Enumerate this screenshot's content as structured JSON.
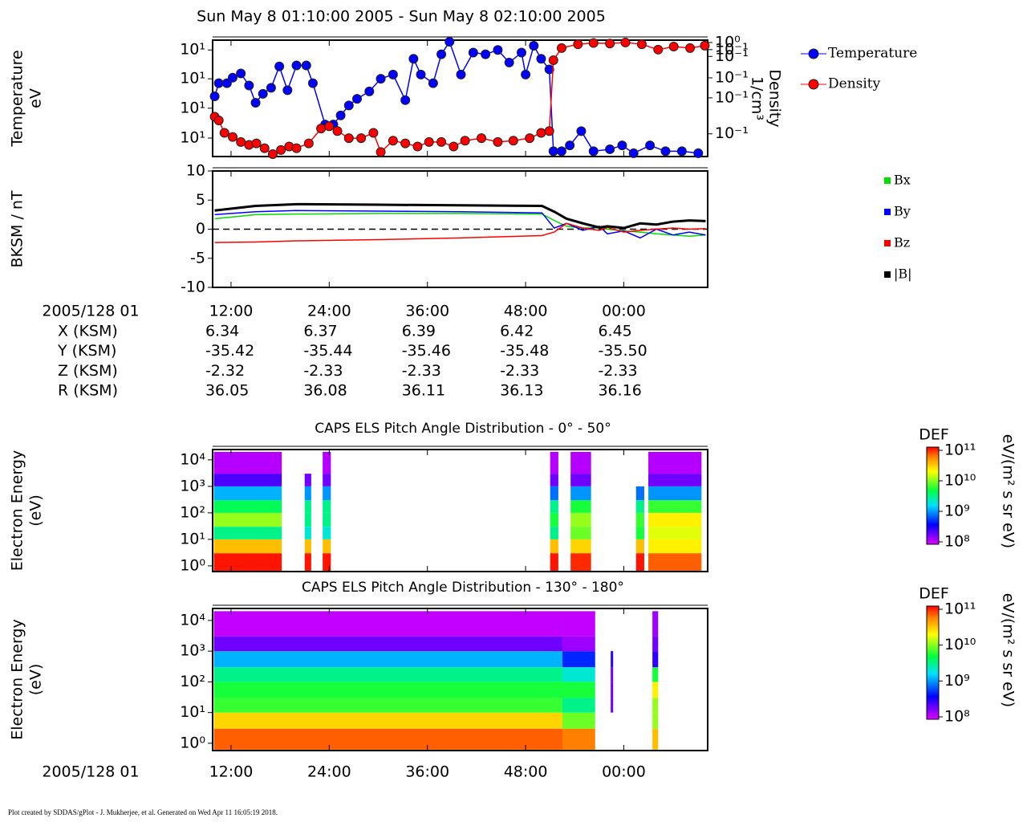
{
  "title": "Sun May 8 01:10:00 2005 - Sun May 8 02:10:00 2005",
  "footer": "Plot created by SDDAS/gPlot - J. Mukherjee, et al.  Generated on Wed Apr 11 16:05:19 2018.",
  "chart_data": [
    {
      "type": "line",
      "log_y": true,
      "log_y2": true,
      "ylabel": [
        "Temperature",
        "eV"
      ],
      "y2label": [
        "Density",
        "1/cm³"
      ],
      "xlim": [
        9.75,
        70.25
      ],
      "ylim": [
        5.74,
        15.2
      ],
      "yticks": [
        {
          "value": 14,
          "label": "10¹"
        },
        {
          "value": 11,
          "label": "10¹"
        },
        {
          "value": 8.6,
          "label": "10¹"
        },
        {
          "value": 6.7,
          "label": "10¹"
        }
      ],
      "y2lim": [
        0.01,
        1.1
      ],
      "y2ticks": [
        {
          "value": 1.0,
          "label": "10⁰"
        },
        {
          "value": 0.75,
          "label": "10⁻¹"
        },
        {
          "value": 0.57,
          "label": "10⁻¹"
        },
        {
          "value": 0.24,
          "label": "10⁻¹"
        },
        {
          "value": 0.107,
          "label": "10⁻¹"
        },
        {
          "value": 0.025,
          "label": "10⁻¹"
        }
      ],
      "series": [
        {
          "name": "Temperature",
          "color": "#0000ff",
          "axis": "y",
          "x": [
            10.0,
            10.5,
            11.5,
            12.2,
            13.2,
            14.2,
            15.0,
            15.9,
            16.9,
            17.9,
            18.9,
            20.0,
            21.2,
            22.0,
            23.5,
            24.5,
            25.4,
            26.4,
            27.4,
            28.9,
            30.3,
            31.8,
            33.3,
            34.3,
            35.2,
            36.7,
            37.7,
            38.7,
            40.1,
            41.6,
            43.1,
            44.6,
            46.0,
            47.5,
            48.0,
            49.0,
            49.9,
            50.9,
            51.4,
            52.4,
            53.4,
            54.8,
            56.3,
            58.3,
            59.8,
            61.2,
            63.2,
            65.1,
            67.1,
            69.1
          ],
          "values": [
            9.5,
            10.6,
            10.6,
            11.1,
            11.5,
            10.4,
            9.0,
            9.7,
            10.2,
            12.2,
            10.0,
            12.3,
            12.3,
            10.6,
            7.5,
            7.5,
            8.1,
            8.8,
            9.3,
            9.9,
            11.0,
            11.4,
            9.2,
            13.0,
            11.4,
            10.6,
            13.5,
            15.0,
            11.4,
            13.7,
            13.5,
            14.0,
            12.6,
            13.7,
            11.4,
            14.5,
            13.0,
            11.9,
            6.0,
            6.0,
            6.3,
            7.1,
            6.0,
            6.1,
            6.3,
            5.9,
            6.3,
            6.0,
            6.0,
            5.9
          ]
        },
        {
          "name": "Density",
          "color": "#ff0000",
          "axis": "y2",
          "x": [
            10.0,
            10.5,
            11.2,
            12.2,
            13.2,
            14.2,
            15.1,
            16.1,
            17.1,
            18.1,
            19.1,
            20.0,
            21.5,
            23.0,
            24.0,
            25.0,
            26.4,
            27.9,
            29.4,
            30.3,
            31.8,
            33.3,
            34.8,
            36.2,
            37.7,
            39.2,
            40.6,
            42.6,
            44.6,
            46.5,
            48.5,
            49.9,
            50.9,
            51.4,
            52.4,
            54.4,
            56.3,
            58.3,
            60.2,
            62.2,
            64.2,
            66.1,
            68.1,
            69.9
          ],
          "values": [
            0.05,
            0.043,
            0.026,
            0.022,
            0.018,
            0.016,
            0.017,
            0.014,
            0.011,
            0.013,
            0.015,
            0.014,
            0.017,
            0.031,
            0.034,
            0.028,
            0.021,
            0.021,
            0.026,
            0.012,
            0.019,
            0.017,
            0.015,
            0.018,
            0.018,
            0.015,
            0.019,
            0.021,
            0.018,
            0.019,
            0.021,
            0.026,
            0.028,
            0.49,
            0.8,
            0.93,
            0.98,
            0.96,
            1.0,
            0.93,
            0.75,
            0.85,
            0.8,
            0.88
          ]
        }
      ]
    },
    {
      "type": "line",
      "ylabel": [
        "BKSM / nT"
      ],
      "xlabel": "2005/128 01",
      "xlim": [
        9.75,
        70.25
      ],
      "xticks": [
        {
          "value": 12,
          "label": "12:00"
        },
        {
          "value": 24,
          "label": "24:00"
        },
        {
          "value": 36,
          "label": "36:00"
        },
        {
          "value": 48,
          "label": "48:00"
        },
        {
          "value": 60,
          "label": "00:00"
        }
      ],
      "ylim": [
        -10,
        10
      ],
      "yticks": [
        -10,
        -5,
        0,
        5,
        10
      ],
      "x": [
        10,
        15,
        20,
        30,
        40,
        50,
        51.5,
        53,
        55,
        57,
        58,
        60,
        62,
        64,
        66,
        68,
        70
      ],
      "series": [
        {
          "name": "Bx",
          "color": "#00dd00",
          "values": [
            1.8,
            2.5,
            2.6,
            2.7,
            2.7,
            2.6,
            1.5,
            0.5,
            0.2,
            0.2,
            0.0,
            -0.3,
            -0.5,
            -0.8,
            -1.0,
            -1.2,
            -1.0
          ]
        },
        {
          "name": "By",
          "color": "#0000ff",
          "values": [
            2.5,
            3.0,
            3.2,
            3.1,
            3.0,
            2.8,
            0.2,
            1.0,
            -0.2,
            0.5,
            -0.8,
            -0.3,
            -1.5,
            0.0,
            -1.0,
            -0.5,
            -1.0
          ]
        },
        {
          "name": "Bz",
          "color": "#ff0000",
          "values": [
            -2.3,
            -2.2,
            -2.0,
            -1.8,
            -1.5,
            -1.1,
            -0.5,
            1.0,
            0.2,
            -0.2,
            0.3,
            -0.5,
            -0.2,
            0.0,
            0.2,
            0.0,
            0.1
          ]
        },
        {
          "name": "|B|",
          "color": "#000000",
          "values": [
            3.2,
            4.0,
            4.3,
            4.2,
            4.1,
            4.0,
            3.0,
            1.8,
            1.0,
            0.3,
            0.5,
            0.2,
            1.0,
            0.8,
            1.3,
            1.5,
            1.4
          ]
        }
      ],
      "ephemeris": [
        {
          "label": "X (KSM)",
          "values": [
            "6.34",
            "6.37",
            "6.39",
            "6.42",
            "6.45"
          ]
        },
        {
          "label": "Y (KSM)",
          "values": [
            "-35.42",
            "-35.44",
            "-35.46",
            "-35.48",
            "-35.50"
          ]
        },
        {
          "label": "Z (KSM)",
          "values": [
            "-2.32",
            "-2.33",
            "-2.33",
            "-2.33",
            "-2.33"
          ]
        },
        {
          "label": "R (KSM)",
          "values": [
            "36.05",
            "36.08",
            "36.11",
            "36.13",
            "36.16"
          ]
        }
      ]
    },
    {
      "type": "heatmap",
      "title": "CAPS ELS Pitch Angle Distribution - 0° - 50°",
      "ylabel": [
        "Electron Energy",
        "(eV)"
      ],
      "log_y": true,
      "xlim": [
        9.75,
        70.25
      ],
      "ylim": [
        0.61,
        24500
      ],
      "yticks": [
        {
          "value": 1,
          "label": "10⁰"
        },
        {
          "value": 10,
          "label": "10¹"
        },
        {
          "value": 100,
          "label": "10²"
        },
        {
          "value": 1000,
          "label": "10³"
        },
        {
          "value": 10000,
          "label": "10⁴"
        }
      ],
      "x_bins": [
        9.9,
        18.2,
        21.0,
        21.8,
        23.2,
        24.2,
        51.0,
        52.0,
        53.5,
        56.0,
        61.5,
        62.5,
        63.0,
        69.5,
        70.2
      ],
      "y_bins": [
        0.62,
        3,
        10,
        30,
        100,
        300,
        1000,
        3000,
        20000
      ],
      "values": [
        [
          90000000000.0,
          null,
          90000000000.0,
          null,
          90000000000.0,
          null,
          90000000000.0,
          null,
          80000000000.0,
          null,
          90000000000.0,
          null,
          60000000000.0,
          null
        ],
        [
          30000000000.0,
          null,
          30000000000.0,
          null,
          30000000000.0,
          null,
          30000000000.0,
          null,
          25000000000.0,
          null,
          30000000000.0,
          null,
          20000000000.0,
          null
        ],
        [
          3000000000.0,
          null,
          2000000000.0,
          null,
          2000000000.0,
          null,
          3000000000.0,
          null,
          8000000000.0,
          null,
          5000000000.0,
          null,
          15000000000.0,
          null
        ],
        [
          10000000000.0,
          null,
          3000000000.0,
          null,
          3000000000.0,
          null,
          5000000000.0,
          null,
          10000000000.0,
          null,
          6000000000.0,
          null,
          20000000000.0,
          null
        ],
        [
          4000000000.0,
          null,
          3000000000.0,
          null,
          3000000000.0,
          null,
          3000000000.0,
          null,
          5000000000.0,
          null,
          3000000000.0,
          null,
          6000000000.0,
          null
        ],
        [
          1200000000.0,
          null,
          1000000000.0,
          null,
          1000000000.0,
          null,
          800000000.0,
          null,
          1000000000.0,
          null,
          800000000.0,
          null,
          1000000000.0,
          null
        ],
        [
          250000000.0,
          null,
          200000000.0,
          null,
          200000000.0,
          null,
          200000000.0,
          null,
          200000000.0,
          null,
          null,
          null,
          200000000.0,
          null
        ],
        [
          130000000.0,
          null,
          null,
          null,
          130000000.0,
          null,
          130000000.0,
          null,
          130000000.0,
          null,
          null,
          null,
          130000000.0,
          null
        ]
      ],
      "colorbar": {
        "label": "DEF",
        "unit": "eV/(m² s sr eV)",
        "lim": [
          100000000.0,
          100000000000.0
        ],
        "ticks": [
          {
            "value": 100000000.0,
            "label": "10⁸"
          },
          {
            "value": 1000000000.0,
            "label": "10⁹"
          },
          {
            "value": 10000000000.0,
            "label": "10¹⁰"
          },
          {
            "value": 100000000000.0,
            "label": "10¹¹"
          }
        ]
      }
    },
    {
      "type": "heatmap",
      "title": "CAPS ELS Pitch Angle Distribution - 130° - 180°",
      "ylabel": [
        "Electron Energy",
        "(eV)"
      ],
      "log_y": true,
      "xlabel": "2005/128 01",
      "xlim": [
        9.75,
        70.25
      ],
      "ylim": [
        0.58,
        24500
      ],
      "xticks": [
        {
          "value": 12,
          "label": "12:00"
        },
        {
          "value": 24,
          "label": "24:00"
        },
        {
          "value": 36,
          "label": "36:00"
        },
        {
          "value": 48,
          "label": "48:00"
        },
        {
          "value": 60,
          "label": "00:00"
        }
      ],
      "yticks": [
        {
          "value": 1,
          "label": "10⁰"
        },
        {
          "value": 10,
          "label": "10¹"
        },
        {
          "value": 100,
          "label": "10²"
        },
        {
          "value": 1000,
          "label": "10³"
        },
        {
          "value": 10000,
          "label": "10⁴"
        }
      ],
      "x_bins": [
        9.9,
        52.5,
        56.5,
        58.4,
        58.7,
        63.5,
        64.2,
        70.2
      ],
      "y_bins": [
        0.62,
        3,
        10,
        30,
        100,
        300,
        1000,
        3000,
        20000
      ],
      "values": [
        [
          60000000000.0,
          50000000000.0,
          null,
          null,
          null,
          30000000000.0,
          null
        ],
        [
          25000000000.0,
          8000000000.0,
          null,
          null,
          null,
          10000000000.0,
          null
        ],
        [
          6000000000.0,
          3000000000.0,
          null,
          200000000.0,
          null,
          10000000000.0,
          null
        ],
        [
          5000000000.0,
          5000000000.0,
          null,
          200000000.0,
          null,
          20000000000.0,
          null
        ],
        [
          3000000000.0,
          2000000000.0,
          null,
          200000000.0,
          null,
          5000000000.0,
          null
        ],
        [
          1200000000.0,
          500000000.0,
          null,
          300000000.0,
          null,
          300000000.0,
          null
        ],
        [
          200000000.0,
          150000000.0,
          null,
          null,
          null,
          200000000.0,
          null
        ],
        [
          120000000.0,
          120000000.0,
          null,
          null,
          null,
          150000000.0,
          null
        ]
      ],
      "colorbar": {
        "label": "DEF",
        "unit": "eV/(m² s sr eV)",
        "lim": [
          100000000.0,
          100000000000.0
        ],
        "ticks": [
          {
            "value": 100000000.0,
            "label": "10⁸"
          },
          {
            "value": 1000000000.0,
            "label": "10⁹"
          },
          {
            "value": 10000000000.0,
            "label": "10¹⁰"
          },
          {
            "value": 100000000000.0,
            "label": "10¹¹"
          }
        ]
      }
    }
  ]
}
